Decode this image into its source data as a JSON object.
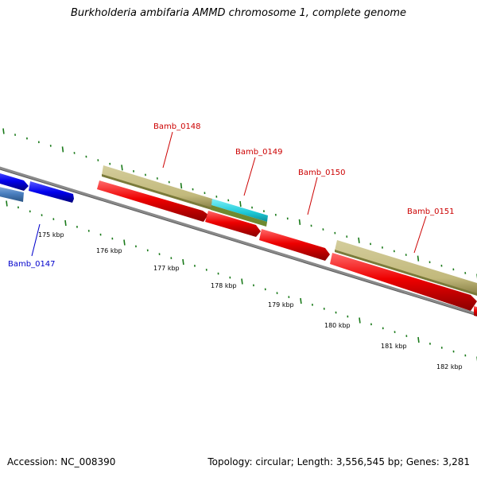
{
  "title": "Burkholderia ambifaria AMMD chromosome 1, complete genome",
  "footer": {
    "accession": "Accession: NC_008390",
    "summary": "Topology: circular; Length: 3,556,545 bp; Genes: 3,281"
  },
  "colors": {
    "background": "#ffffff",
    "backbone": "#808080",
    "tick": "#1a7a1a",
    "gene_forward": "#0000ee",
    "gene_forward_light": "#4a7fc0",
    "gene_reverse": "#ee0000",
    "cds_olive": "#c8c086",
    "cds_olive_dark": "#6e7a28",
    "cds_cyan": "#1ec9d6",
    "label_red": "#cc0000",
    "label_blue": "#0000cc"
  },
  "scale_ticks": [
    "175 kbp",
    "176 kbp",
    "177 kbp",
    "178 kbp",
    "179 kbp",
    "180 kbp",
    "181 kbp",
    "182 kbp"
  ],
  "gene_labels": [
    {
      "name": "Bamb_0147",
      "color": "blue"
    },
    {
      "name": "Bamb_0148",
      "color": "red"
    },
    {
      "name": "Bamb_0149",
      "color": "red"
    },
    {
      "name": "Bamb_0150",
      "color": "red"
    },
    {
      "name": "Bamb_0151",
      "color": "red"
    }
  ]
}
